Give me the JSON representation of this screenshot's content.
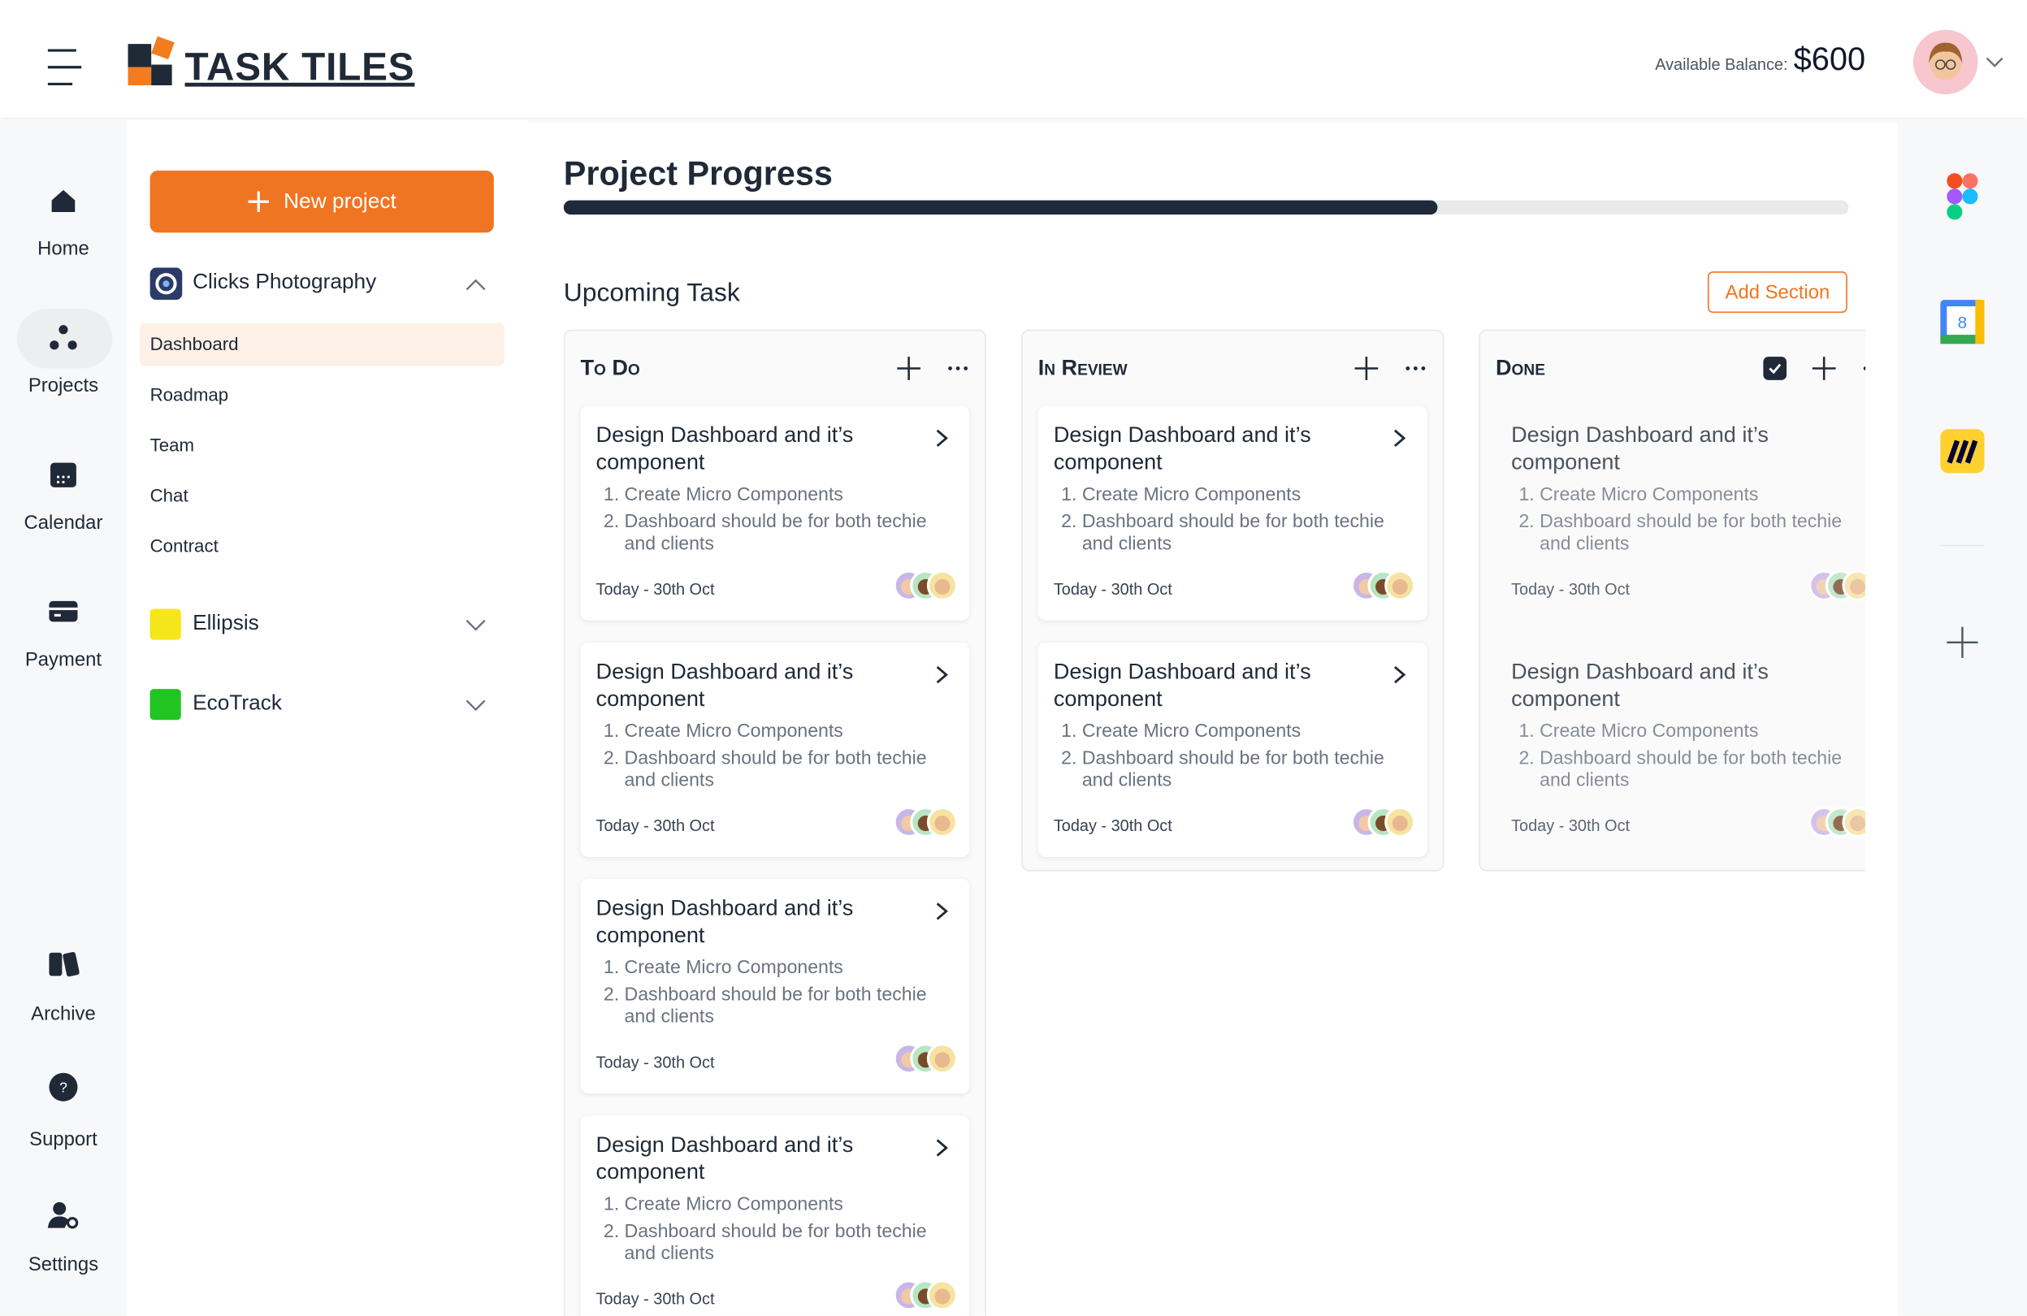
{
  "header": {
    "brand": "TASK TILES",
    "balance_label": "Available Balance:",
    "balance": "$600"
  },
  "nav": [
    {
      "label": "Home"
    },
    {
      "label": "Projects"
    },
    {
      "label": "Calendar"
    },
    {
      "label": "Payment"
    },
    {
      "label": "Archive"
    },
    {
      "label": "Support"
    },
    {
      "label": "Settings"
    }
  ],
  "sidebar": {
    "new_project": "New project",
    "projects": [
      {
        "name": "Clicks Photography",
        "items": [
          "Dashboard",
          "Roadmap",
          "Team",
          "Chat",
          "Contract"
        ],
        "active": 0
      },
      {
        "name": "Ellipsis",
        "color": "#f5e61b"
      },
      {
        "name": "EcoTrack",
        "color": "#22c422"
      }
    ]
  },
  "main": {
    "title": "Project Progress",
    "progress": 68,
    "upcoming": "Upcoming Task",
    "add_section": "Add Section",
    "columns": [
      {
        "title": "To Do",
        "cards": [
          {
            "title": "Design Dashboard and it’s component",
            "items": [
              "Create Micro Components",
              "Dashboard should be for both techie and clients"
            ],
            "date": "Today - 30th Oct"
          },
          {
            "title": "Design Dashboard and it’s component",
            "items": [
              "Create Micro Components",
              "Dashboard should be for both techie and clients"
            ],
            "date": "Today - 30th Oct"
          },
          {
            "title": "Design Dashboard and it’s component",
            "items": [
              "Create Micro Components",
              "Dashboard should be for both techie and clients"
            ],
            "date": "Today - 30th Oct"
          },
          {
            "title": "Design Dashboard and it’s component",
            "items": [
              "Create Micro Components",
              "Dashboard should be for both techie and clients"
            ],
            "date": "Today - 30th Oct"
          }
        ]
      },
      {
        "title": "In Review",
        "cards": [
          {
            "title": "Design Dashboard and it’s component",
            "items": [
              "Create Micro Components",
              "Dashboard should be for both techie and clients"
            ],
            "date": "Today - 30th Oct"
          },
          {
            "title": "Design Dashboard and it’s component",
            "items": [
              "Create Micro Components",
              "Dashboard should be for both techie and clients"
            ],
            "date": "Today - 30th Oct"
          }
        ]
      },
      {
        "title": "Done",
        "cards": [
          {
            "title": "Design Dashboard and it’s component",
            "items": [
              "Create Micro Components",
              "Dashboard should be for both techie and clients"
            ],
            "date": "Today - 30th Oct"
          },
          {
            "title": "Design Dashboard and it’s component",
            "items": [
              "Create Micro Components",
              "Dashboard should be for both techie and clients"
            ],
            "date": "Today - 30th Oct"
          }
        ]
      }
    ]
  }
}
